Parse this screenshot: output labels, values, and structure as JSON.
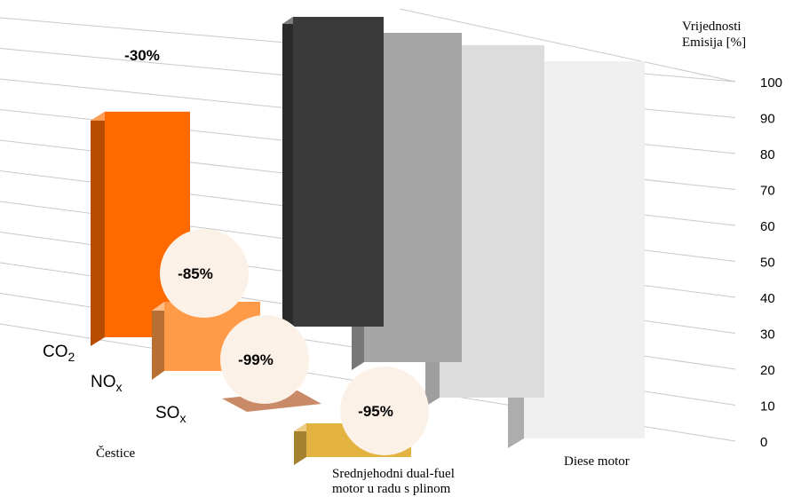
{
  "chart_data": {
    "type": "bar",
    "ylabel": "Vrijednosti\nEmisija [%]",
    "yticks": [
      "0",
      "10",
      "20",
      "30",
      "40",
      "50",
      "60",
      "70",
      "80",
      "90",
      "100"
    ],
    "ylim": [
      0,
      100
    ],
    "grid": true,
    "categories": [
      {
        "label": "CO",
        "sub": "2"
      },
      {
        "label": "NO",
        "sub": "x"
      },
      {
        "label": "SO",
        "sub": "x"
      },
      {
        "label": "Čestice",
        "sub": ""
      }
    ],
    "series": [
      {
        "name": "Srednjehodni dual-fuel\nmotor u radu s plinom",
        "values": [
          70,
          15,
          1,
          5
        ]
      },
      {
        "name": "Diese motor",
        "values": [
          100,
          100,
          100,
          100
        ]
      }
    ],
    "reductions": [
      "-30%",
      "-85%",
      "-99%",
      "-95%"
    ],
    "colors": {
      "gas": [
        "#ff6a00",
        "#ff9a48",
        "#c98a68",
        "#e3b341"
      ],
      "diesel": [
        "#3a3a3a",
        "#a5a5a5",
        "#dcdcdc",
        "#f0f0f0"
      ],
      "grid": "#c8c8c8"
    }
  }
}
